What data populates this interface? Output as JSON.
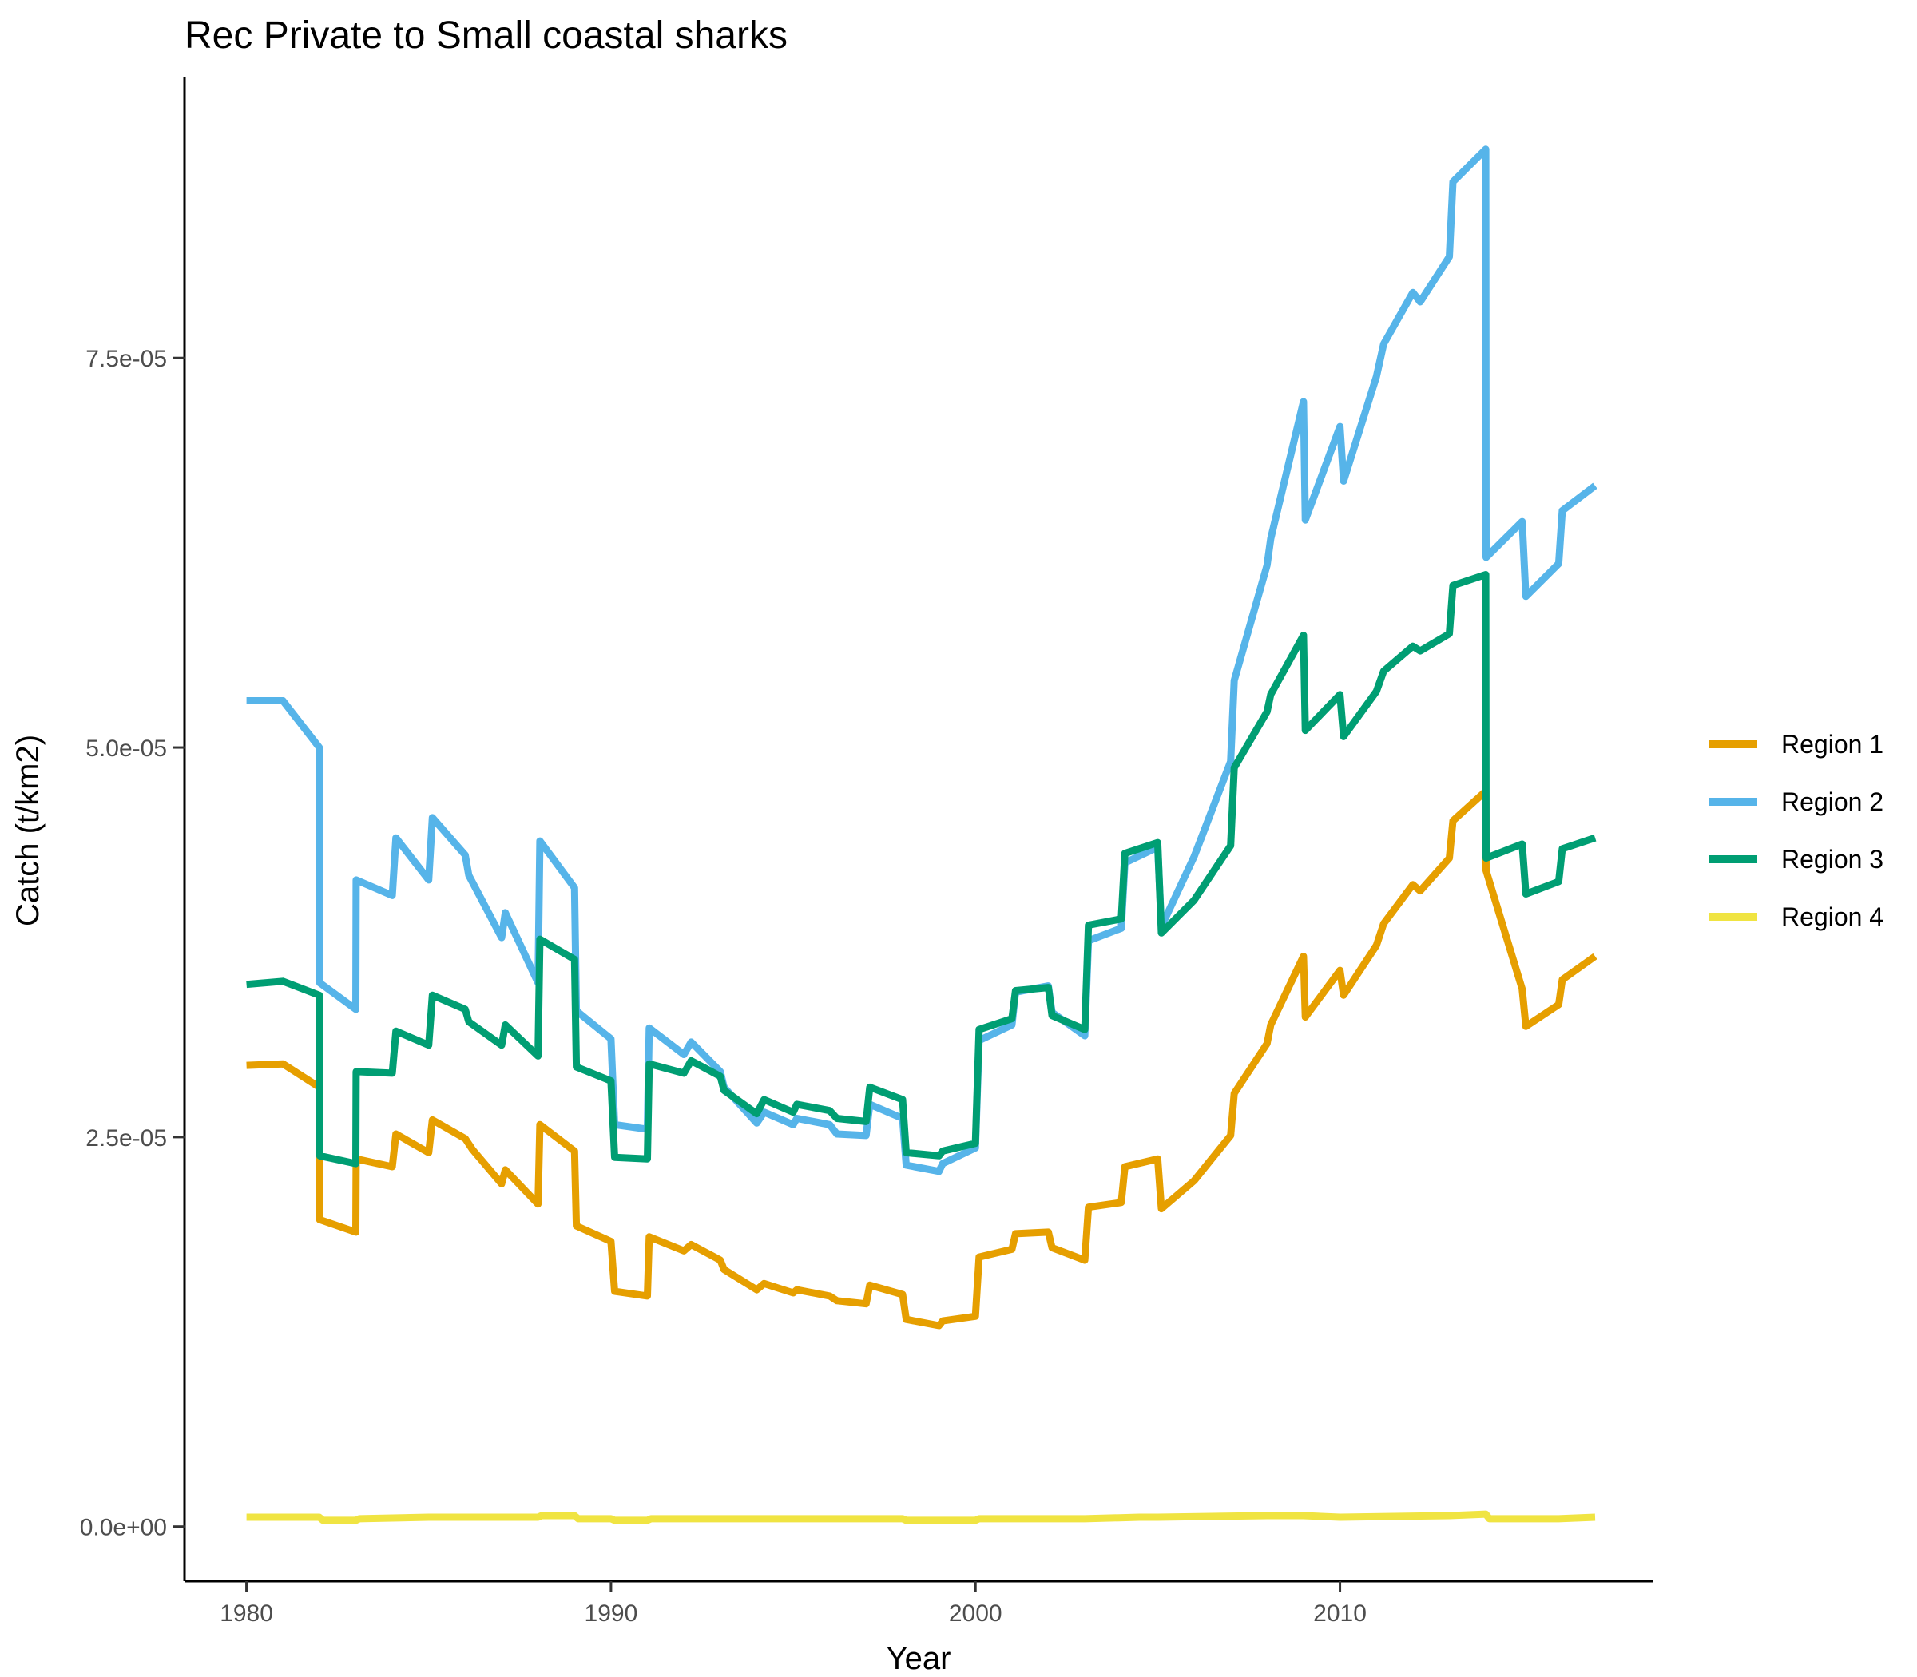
{
  "chart_data": {
    "type": "line",
    "title": "Rec Private to Small coastal sharks",
    "xlabel": "Year",
    "ylabel": "Catch (t/km2)",
    "xlim": [
      1978.3,
      2018.6
    ],
    "ylim": [
      -3.5e-06,
      9.3e-05
    ],
    "x_ticks": [
      1980,
      1990,
      2000,
      2010
    ],
    "x_tick_labels": [
      "1980",
      "1990",
      "2000",
      "2010"
    ],
    "y_ticks": [
      0,
      2.5e-05,
      5e-05,
      7.5e-05
    ],
    "y_tick_labels": [
      "0.0e+00",
      "2.5e-05",
      "5.0e-05",
      "7.5e-05"
    ],
    "grid": false,
    "legend_position": "right",
    "colors": {
      "Region 1": "#E69F00",
      "Region 2": "#56B4E9",
      "Region 3": "#009E73",
      "Region 4": "#F0E442"
    },
    "series": [
      {
        "name": "Region 1",
        "color": "#E69F00",
        "x": [
          1980,
          1981,
          1982,
          1982.01,
          1983,
          1983.01,
          1984,
          1984.1,
          1985,
          1985.1,
          1986,
          1986.2,
          1987,
          1987.1,
          1988,
          1988.05,
          1989,
          1989.05,
          1990,
          1990.1,
          1991,
          1991.05,
          1992,
          1992.2,
          1993,
          1993.1,
          1994,
          1994.2,
          1995,
          1995.1,
          1996,
          1996.2,
          1997,
          1997.1,
          1998,
          1998.1,
          1999,
          1999.1,
          2000,
          2000.1,
          2001,
          2001.1,
          2002,
          2002.1,
          2003,
          2003.1,
          2004,
          2004.1,
          2005,
          2005.1,
          2006,
          2007,
          2007.1,
          2008,
          2008.1,
          2009,
          2009.05,
          2010,
          2010.1,
          2011,
          2011.2,
          2012,
          2012.2,
          2013,
          2013.1,
          2014,
          2014.01,
          2015,
          2015.1,
          2016,
          2016.1,
          2017
        ],
        "y": [
          2.96e-05,
          2.97e-05,
          2.82e-05,
          1.97e-05,
          1.89e-05,
          2.36e-05,
          2.31e-05,
          2.52e-05,
          2.4e-05,
          2.61e-05,
          2.49e-05,
          2.42e-05,
          2.2e-05,
          2.29e-05,
          2.07e-05,
          2.58e-05,
          2.41e-05,
          1.93e-05,
          1.83e-05,
          1.51e-05,
          1.48e-05,
          1.86e-05,
          1.77e-05,
          1.81e-05,
          1.71e-05,
          1.65e-05,
          1.52e-05,
          1.56e-05,
          1.5e-05,
          1.52e-05,
          1.48e-05,
          1.45e-05,
          1.43e-05,
          1.55e-05,
          1.49e-05,
          1.33e-05,
          1.29e-05,
          1.32e-05,
          1.35e-05,
          1.73e-05,
          1.78e-05,
          1.88e-05,
          1.89e-05,
          1.79e-05,
          1.71e-05,
          2.05e-05,
          2.08e-05,
          2.31e-05,
          2.36e-05,
          2.04e-05,
          2.22e-05,
          2.51e-05,
          2.78e-05,
          3.1e-05,
          3.22e-05,
          3.66e-05,
          3.27e-05,
          3.57e-05,
          3.41e-05,
          3.73e-05,
          3.87e-05,
          4.12e-05,
          4.08e-05,
          4.29e-05,
          4.53e-05,
          4.72e-05,
          4.21e-05,
          3.45e-05,
          3.21e-05,
          3.35e-05,
          3.51e-05,
          3.66e-05
        ]
      },
      {
        "name": "Region 2",
        "color": "#56B4E9",
        "x": [
          1980,
          1981,
          1982,
          1982.01,
          1983,
          1983.01,
          1984,
          1984.1,
          1985,
          1985.1,
          1986,
          1986.1,
          1987,
          1987.1,
          1988,
          1988.05,
          1989,
          1989.05,
          1990,
          1990.1,
          1991,
          1991.05,
          1992,
          1992.2,
          1993,
          1993.1,
          1994,
          1994.2,
          1995,
          1995.1,
          1996,
          1996.2,
          1997,
          1997.1,
          1998,
          1998.1,
          1999,
          1999.1,
          2000,
          2000.1,
          2001,
          2001.1,
          2002,
          2002.1,
          2003,
          2003.1,
          2004,
          2004.1,
          2005,
          2005.1,
          2006,
          2007,
          2007.1,
          2008,
          2008.1,
          2009,
          2009.05,
          2010,
          2010.1,
          2011,
          2011.2,
          2012,
          2012.2,
          2013,
          2013.1,
          2014,
          2014.01,
          2015,
          2015.1,
          2016,
          2016.1,
          2017
        ],
        "y": [
          5.3e-05,
          5.3e-05,
          5e-05,
          3.49e-05,
          3.32e-05,
          4.15e-05,
          4.05e-05,
          4.42e-05,
          4.15e-05,
          4.55e-05,
          4.31e-05,
          4.18e-05,
          3.78e-05,
          3.94e-05,
          3.49e-05,
          4.4e-05,
          4.1e-05,
          3.31e-05,
          3.13e-05,
          2.58e-05,
          2.55e-05,
          3.2e-05,
          3.03e-05,
          3.11e-05,
          2.92e-05,
          2.82e-05,
          2.59e-05,
          2.66e-05,
          2.58e-05,
          2.62e-05,
          2.58e-05,
          2.52e-05,
          2.51e-05,
          2.71e-05,
          2.62e-05,
          2.32e-05,
          2.28e-05,
          2.33e-05,
          2.43e-05,
          3.12e-05,
          3.22e-05,
          3.43e-05,
          3.47e-05,
          3.3e-05,
          3.15e-05,
          3.76e-05,
          3.84e-05,
          4.26e-05,
          4.36e-05,
          3.85e-05,
          4.3e-05,
          4.91e-05,
          5.43e-05,
          6.17e-05,
          6.34e-05,
          7.22e-05,
          6.46e-05,
          7.06e-05,
          6.71e-05,
          7.38e-05,
          7.59e-05,
          7.92e-05,
          7.86e-05,
          8.15e-05,
          8.63e-05,
          8.84e-05,
          6.22e-05,
          6.45e-05,
          5.97e-05,
          6.18e-05,
          6.52e-05,
          6.68e-05
        ]
      },
      {
        "name": "Region 3",
        "color": "#009E73",
        "x": [
          1980,
          1981,
          1982,
          1982.01,
          1983,
          1983.01,
          1984,
          1984.1,
          1985,
          1985.1,
          1986,
          1986.1,
          1987,
          1987.1,
          1988,
          1988.05,
          1989,
          1989.05,
          1990,
          1990.1,
          1991,
          1991.05,
          1992,
          1992.2,
          1993,
          1993.1,
          1994,
          1994.2,
          1995,
          1995.1,
          1996,
          1996.2,
          1997,
          1997.1,
          1998,
          1998.1,
          1999,
          1999.1,
          2000,
          2000.1,
          2001,
          2001.1,
          2002,
          2002.1,
          2003,
          2003.1,
          2004,
          2004.1,
          2005,
          2005.1,
          2006,
          2007,
          2007.1,
          2008,
          2008.1,
          2009,
          2009.05,
          2010,
          2010.1,
          2011,
          2011.2,
          2012,
          2012.2,
          2013,
          2013.1,
          2014,
          2014.01,
          2015,
          2015.1,
          2016,
          2016.1,
          2017
        ],
        "y": [
          3.48e-05,
          3.5e-05,
          3.41e-05,
          2.38e-05,
          2.33e-05,
          2.92e-05,
          2.91e-05,
          3.18e-05,
          3.09e-05,
          3.41e-05,
          3.32e-05,
          3.24e-05,
          3.09e-05,
          3.22e-05,
          3.02e-05,
          3.77e-05,
          3.64e-05,
          2.95e-05,
          2.86e-05,
          2.37e-05,
          2.36e-05,
          2.97e-05,
          2.91e-05,
          2.99e-05,
          2.89e-05,
          2.8e-05,
          2.65e-05,
          2.74e-05,
          2.66e-05,
          2.71e-05,
          2.67e-05,
          2.62e-05,
          2.6e-05,
          2.82e-05,
          2.74e-05,
          2.4e-05,
          2.38e-05,
          2.41e-05,
          2.46e-05,
          3.19e-05,
          3.26e-05,
          3.44e-05,
          3.46e-05,
          3.28e-05,
          3.19e-05,
          3.86e-05,
          3.9e-05,
          4.32e-05,
          4.39e-05,
          3.81e-05,
          4.02e-05,
          4.37e-05,
          4.87e-05,
          5.23e-05,
          5.34e-05,
          5.72e-05,
          5.11e-05,
          5.34e-05,
          5.07e-05,
          5.36e-05,
          5.49e-05,
          5.65e-05,
          5.62e-05,
          5.73e-05,
          6.04e-05,
          6.11e-05,
          4.29e-05,
          4.38e-05,
          4.06e-05,
          4.14e-05,
          4.35e-05,
          4.42e-05
        ]
      },
      {
        "name": "Region 4",
        "color": "#F0E442",
        "x": [
          1980,
          1982,
          1982.1,
          1983,
          1983.1,
          1985,
          1988,
          1988.1,
          1989,
          1989.1,
          1990,
          1990.1,
          1991,
          1991.1,
          1995,
          1998,
          1998.1,
          2000,
          2000.1,
          2003,
          2004.5,
          2005,
          2008,
          2009,
          2010,
          2013,
          2014,
          2014.1,
          2016,
          2017
        ],
        "y": [
          6e-07,
          6e-07,
          4e-07,
          4e-07,
          5e-07,
          6e-07,
          6e-07,
          7e-07,
          7e-07,
          5e-07,
          5e-07,
          4e-07,
          4e-07,
          5e-07,
          5e-07,
          5e-07,
          4e-07,
          4e-07,
          5e-07,
          5e-07,
          6e-07,
          6e-07,
          7e-07,
          7e-07,
          6e-07,
          7e-07,
          8e-07,
          5e-07,
          5e-07,
          6e-07
        ]
      }
    ]
  }
}
